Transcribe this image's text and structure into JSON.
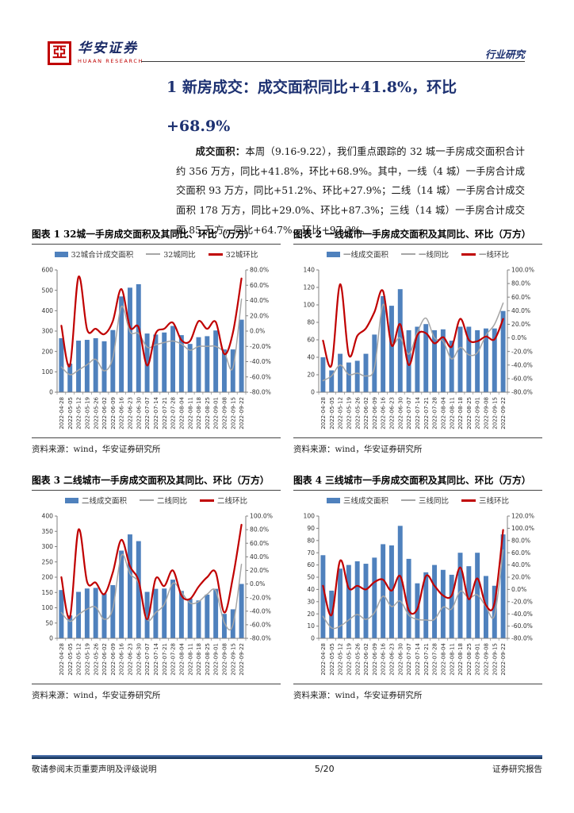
{
  "header": {
    "seal_glyph": "亞",
    "brand_cn": "华安证券",
    "brand_en": "HUAAN RESEARCH",
    "section_label": "行业研究"
  },
  "title": {
    "line1": "1 新房成交：成交面积同比+41.8%，环比",
    "line2": "+68.9%"
  },
  "paragraph": {
    "lead": "成交面积：",
    "body": "本周（9.16-9.22），我们重点跟踪的 32 城一手房成交面积合计约 356 万方，同比+41.8%，环比+68.9%。其中，一线（4 城）一手房合计成交面积 93 万方，同比+51.2%、环比+27.9%；二线（14 城）一手房合计成交面积 178 万方，同比+29.0%、环比+87.3%；三线（14 城）一手房合计成交面 85 万方，同比+64.7%、环比+97.3%。"
  },
  "colors": {
    "bar": "#4F81BD",
    "yoy_line": "#A6A6A6",
    "wow_line": "#C00000",
    "accent_navy": "#1e3272",
    "seal_red": "#C00000",
    "footer_bar": "#17375E",
    "axis": "#808080",
    "axis_text": "#333333"
  },
  "categories": [
    "2022-04-28",
    "2022-05-05",
    "2022-05-12",
    "2022-05-19",
    "2022-05-26",
    "2022-06-02",
    "2022-06-09",
    "2022-06-16",
    "2022-06-23",
    "2022-06-30",
    "2022-07-07",
    "2022-07-14",
    "2022-07-21",
    "2022-07-28",
    "2022-08-04",
    "2022-08-11",
    "2022-08-18",
    "2022-08-25",
    "2022-09-01",
    "2022-09-08",
    "2022-09-15",
    "2022-09-22"
  ],
  "figures": [
    {
      "title": "图表 1 32城一手房成交面积及其同比、环比（万方）",
      "source": "资料来源：wind，华安证券研究所",
      "chart_data": {
        "type": "bar",
        "left_axis": {
          "min": 0,
          "max": 600,
          "step": 100
        },
        "right_axis": {
          "min": -80,
          "max": 80,
          "step": 20,
          "format": "percent"
        },
        "series": [
          {
            "name": "32城合计成交面积",
            "kind": "bar",
            "axis": "left",
            "values": [
              265,
              140,
              253,
              257,
              265,
              250,
              305,
              470,
              513,
              530,
              288,
              283,
              293,
              325,
              280,
              237,
              270,
              275,
              303,
              210,
              210,
              356
            ]
          },
          {
            "name": "32城同比",
            "kind": "line",
            "axis": "right",
            "color_key": "yoy_line",
            "values": [
              -47,
              -57,
              -51,
              -44,
              -37,
              -52,
              -35,
              32,
              -1,
              -3,
              -21,
              -18,
              -15,
              -13,
              -17,
              -25,
              -20,
              -20,
              -20,
              -28,
              -48,
              41.8
            ]
          },
          {
            "name": "32城环比",
            "kind": "line",
            "axis": "right",
            "color_key": "wow_line",
            "values": [
              7,
              -45,
              71,
              2,
              3,
              -4,
              13,
              55,
              5,
              5,
              -45,
              -3,
              3,
              11,
              -12,
              -13,
              13,
              3,
              12,
              -30,
              -2,
              68.9
            ]
          }
        ]
      }
    },
    {
      "title": "图表 2 一线城市一手房成交面积及其同比、环比（万方）",
      "source": "资料来源：wind，华安证券研究所",
      "chart_data": {
        "type": "bar",
        "left_axis": {
          "min": 0,
          "max": 140,
          "step": 20
        },
        "right_axis": {
          "min": -80,
          "max": 100,
          "step": 20,
          "format": "percent"
        },
        "series": [
          {
            "name": "一线成交面积",
            "kind": "bar",
            "axis": "left",
            "values": [
              40,
              25,
              44,
              34,
              36,
              44,
              66,
              110,
              99,
              118,
              71,
              75,
              78,
              71,
              72,
              59,
              75,
              75,
              71,
              73,
              73,
              93
            ]
          },
          {
            "name": "一线同比",
            "kind": "line",
            "axis": "right",
            "color_key": "yoy_line",
            "values": [
              -63,
              -56,
              -40,
              -54,
              -52,
              -56,
              -44,
              49,
              -7,
              0,
              -24,
              8,
              29,
              0,
              -5,
              -31,
              -14,
              -25,
              -22,
              4,
              20,
              51.2
            ]
          },
          {
            "name": "一线环比",
            "kind": "line",
            "axis": "right",
            "color_key": "wow_line",
            "values": [
              -4,
              -40,
              79,
              -25,
              3,
              14,
              38,
              69,
              -11,
              20,
              -40,
              4,
              7,
              -8,
              1,
              -13,
              28,
              -3,
              -5,
              2,
              -2,
              27.9
            ]
          }
        ]
      }
    },
    {
      "title": "图表 3 二线城市一手房成交面积及其同比、环比（万方）",
      "source": "资料来源：wind，华安证券研究所",
      "chart_data": {
        "type": "bar",
        "left_axis": {
          "min": 0,
          "max": 400,
          "step": 50
        },
        "right_axis": {
          "min": -80,
          "max": 100,
          "step": 20,
          "format": "percent"
        },
        "series": [
          {
            "name": "二线成交面积",
            "kind": "bar",
            "axis": "left",
            "values": [
              158,
              75,
              152,
              163,
              165,
              147,
              174,
              287,
              340,
              318,
              152,
              162,
              163,
              192,
              155,
              130,
              124,
              143,
              162,
              80,
              95,
              178
            ]
          },
          {
            "name": "二线同比",
            "kind": "line",
            "axis": "right",
            "color_key": "yoy_line",
            "values": [
              -42,
              -55,
              -45,
              -37,
              -34,
              -52,
              -36,
              42,
              15,
              1,
              -52,
              -42,
              -30,
              1,
              -12,
              -28,
              -26,
              -15,
              -10,
              -57,
              -60,
              29.0
            ]
          },
          {
            "name": "二线环比",
            "kind": "line",
            "axis": "right",
            "color_key": "wow_line",
            "values": [
              10,
              -49,
              80,
              3,
              2,
              -15,
              17,
              65,
              26,
              5,
              -52,
              8,
              -3,
              20,
              -17,
              -22,
              -4,
              10,
              17,
              -42,
              10,
              87.3
            ]
          }
        ]
      }
    },
    {
      "title": "图表 4 三线城市一手房成交面积及其同比、环比（万方）",
      "source": "资料来源：wind，华安证券研究所",
      "chart_data": {
        "type": "bar",
        "left_axis": {
          "min": 0,
          "max": 100,
          "step": 10
        },
        "right_axis": {
          "min": -80,
          "max": 120,
          "step": 20,
          "format": "percent"
        },
        "series": [
          {
            "name": "三线成交面积",
            "kind": "bar",
            "axis": "left",
            "values": [
              68,
              39,
              57,
              60,
              63,
              61,
              66,
              77,
              76,
              92,
              65,
              45,
              54,
              60,
              56,
              52,
              70,
              59,
              70,
              51,
              43,
              85
            ]
          },
          {
            "name": "三线同比",
            "kind": "line",
            "axis": "right",
            "color_key": "yoy_line",
            "values": [
              -44,
              -63,
              -60,
              -50,
              -41,
              -49,
              -38,
              -11,
              -28,
              -19,
              -42,
              -49,
              -50,
              -49,
              -29,
              -32,
              -3,
              -14,
              -9,
              -28,
              -42,
              64.7
            ]
          },
          {
            "name": "三线环比",
            "kind": "line",
            "axis": "right",
            "color_key": "wow_line",
            "values": [
              6,
              -42,
              47,
              2,
              6,
              0,
              12,
              16,
              -2,
              22,
              -34,
              -32,
              22,
              6,
              -10,
              -10,
              36,
              -16,
              18,
              -26,
              -22,
              97.3
            ]
          }
        ]
      }
    }
  ],
  "footer": {
    "left": "敬请参阅末页重要声明及评级说明",
    "center": "5/20",
    "right": "证券研究报告"
  }
}
